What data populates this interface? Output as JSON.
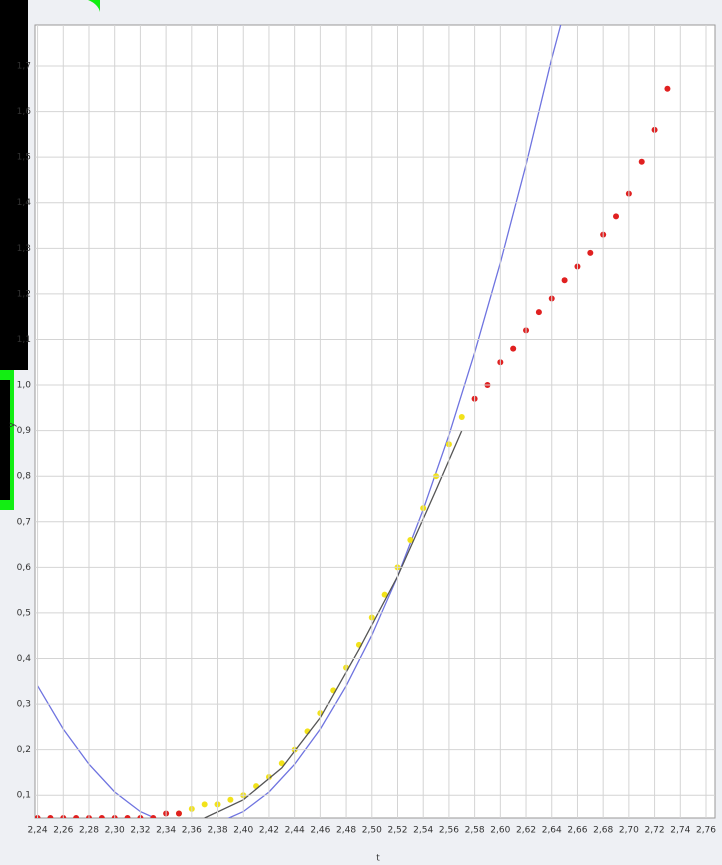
{
  "chart_data": {
    "type": "scatter",
    "xlabel": "t",
    "ylabel": "y",
    "xlim": [
      2.238,
      2.767
    ],
    "ylim": [
      0.05,
      1.79
    ],
    "grid": true,
    "xticks": [
      {
        "value": 2.24,
        "label": "2,24"
      },
      {
        "value": 2.26,
        "label": "2,26"
      },
      {
        "value": 2.28,
        "label": "2,28"
      },
      {
        "value": 2.3,
        "label": "2,30"
      },
      {
        "value": 2.32,
        "label": "2,32"
      },
      {
        "value": 2.34,
        "label": "2,34"
      },
      {
        "value": 2.36,
        "label": "2,36"
      },
      {
        "value": 2.38,
        "label": "2,38"
      },
      {
        "value": 2.4,
        "label": "2,40"
      },
      {
        "value": 2.42,
        "label": "2,42"
      },
      {
        "value": 2.44,
        "label": "2,44"
      },
      {
        "value": 2.46,
        "label": "2,46"
      },
      {
        "value": 2.48,
        "label": "2,48"
      },
      {
        "value": 2.5,
        "label": "2,50"
      },
      {
        "value": 2.52,
        "label": "2,52"
      },
      {
        "value": 2.54,
        "label": "2,54"
      },
      {
        "value": 2.56,
        "label": "2,56"
      },
      {
        "value": 2.58,
        "label": "2,58"
      },
      {
        "value": 2.6,
        "label": "2,60"
      },
      {
        "value": 2.62,
        "label": "2,62"
      },
      {
        "value": 2.64,
        "label": "2,64"
      },
      {
        "value": 2.66,
        "label": "2,66"
      },
      {
        "value": 2.68,
        "label": "2,68"
      },
      {
        "value": 2.7,
        "label": "2,70"
      },
      {
        "value": 2.72,
        "label": "2,72"
      },
      {
        "value": 2.74,
        "label": "2,74"
      },
      {
        "value": 2.76,
        "label": "2,76"
      }
    ],
    "yticks": [
      {
        "value": 0.1,
        "label": "0,1"
      },
      {
        "value": 0.2,
        "label": "0,2"
      },
      {
        "value": 0.3,
        "label": "0,3"
      },
      {
        "value": 0.4,
        "label": "0,4"
      },
      {
        "value": 0.5,
        "label": "0,5"
      },
      {
        "value": 0.6,
        "label": "0,6"
      },
      {
        "value": 0.7,
        "label": "0,7"
      },
      {
        "value": 0.8,
        "label": "0,8"
      },
      {
        "value": 0.9,
        "label": "0,9"
      },
      {
        "value": 1.0,
        "label": "1,0"
      },
      {
        "value": 1.1,
        "label": "1,1"
      },
      {
        "value": 1.2,
        "label": "1,2"
      },
      {
        "value": 1.3,
        "label": "1,3"
      },
      {
        "value": 1.4,
        "label": "1,4"
      },
      {
        "value": 1.5,
        "label": "1,5"
      },
      {
        "value": 1.6,
        "label": "1,6"
      },
      {
        "value": 1.7,
        "label": "1,7"
      }
    ],
    "series": [
      {
        "type": "line",
        "color": "#6f74e0",
        "x": [
          2.24,
          2.26,
          2.28,
          2.3,
          2.32,
          2.34,
          2.36,
          2.38,
          2.4,
          2.42,
          2.44,
          2.46,
          2.48,
          2.5,
          2.52,
          2.54,
          2.56,
          2.58,
          2.6,
          2.62,
          2.64,
          2.647
        ],
        "values": [
          0.34,
          0.245,
          0.168,
          0.107,
          0.064,
          0.039,
          0.03,
          0.039,
          0.064,
          0.107,
          0.168,
          0.245,
          0.34,
          0.451,
          0.58,
          0.727,
          0.89,
          1.071,
          1.268,
          1.483,
          1.716,
          1.79
        ]
      },
      {
        "type": "scatter",
        "color": "#f2e21a",
        "x": [
          2.35,
          2.36,
          2.37,
          2.38,
          2.39,
          2.4,
          2.41,
          2.42,
          2.43,
          2.44,
          2.45,
          2.46,
          2.47,
          2.48,
          2.49,
          2.5,
          2.51,
          2.52,
          2.53,
          2.54,
          2.55,
          2.56,
          2.57
        ],
        "values": [
          0.06,
          0.07,
          0.08,
          0.08,
          0.09,
          0.1,
          0.12,
          0.14,
          0.17,
          0.2,
          0.24,
          0.28,
          0.33,
          0.38,
          0.43,
          0.49,
          0.54,
          0.6,
          0.66,
          0.73,
          0.8,
          0.87,
          0.93
        ]
      },
      {
        "type": "line",
        "color": "#555555",
        "x": [
          2.37,
          2.4,
          2.43,
          2.46,
          2.49,
          2.52,
          2.55,
          2.57
        ],
        "values": [
          0.05,
          0.09,
          0.16,
          0.27,
          0.42,
          0.58,
          0.77,
          0.9
        ]
      },
      {
        "type": "scatter",
        "color": "#e02020",
        "x": [
          2.24,
          2.25,
          2.26,
          2.27,
          2.28,
          2.29,
          2.3,
          2.31,
          2.32,
          2.33,
          2.34,
          2.35,
          2.58,
          2.59,
          2.6,
          2.61,
          2.62,
          2.63,
          2.64,
          2.65,
          2.66,
          2.67,
          2.68,
          2.69,
          2.7,
          2.71,
          2.72,
          2.73
        ],
        "values": [
          0.05,
          0.05,
          0.05,
          0.05,
          0.05,
          0.05,
          0.05,
          0.05,
          0.05,
          0.05,
          0.06,
          0.06,
          0.97,
          1.0,
          1.05,
          1.08,
          1.12,
          1.16,
          1.19,
          1.23,
          1.26,
          1.29,
          1.33,
          1.37,
          1.42,
          1.49,
          1.56,
          1.65
        ]
      }
    ]
  }
}
